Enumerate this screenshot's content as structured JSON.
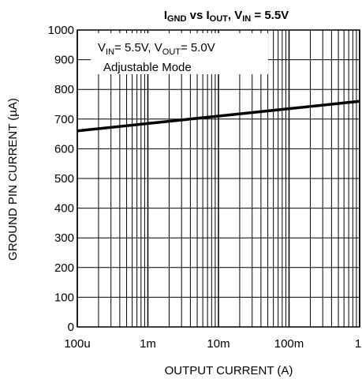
{
  "chart_data": {
    "type": "line",
    "title": {
      "i": "I",
      "gnd": "GND",
      "vs": " vs I",
      "out": "OUT",
      "comma": ", V",
      "in": "IN",
      "tail": " = 5.5V"
    },
    "xlabel": "OUTPUT CURRENT (A)",
    "ylabel": "GROUND PIN CURRENT (µA)",
    "x_scale": "log",
    "xlim": [
      0.0001,
      1
    ],
    "ylim": [
      0,
      1000
    ],
    "grid": true,
    "x_ticks": [
      {
        "value": 0.0001,
        "label": "100u"
      },
      {
        "value": 0.001,
        "label": "1m"
      },
      {
        "value": 0.01,
        "label": "10m"
      },
      {
        "value": 0.1,
        "label": "100m"
      },
      {
        "value": 1,
        "label": "1"
      }
    ],
    "y_ticks": [
      {
        "value": 0,
        "label": "0"
      },
      {
        "value": 100,
        "label": "100"
      },
      {
        "value": 200,
        "label": "200"
      },
      {
        "value": 300,
        "label": "300"
      },
      {
        "value": 400,
        "label": "400"
      },
      {
        "value": 500,
        "label": "500"
      },
      {
        "value": 600,
        "label": "600"
      },
      {
        "value": 700,
        "label": "700"
      },
      {
        "value": 800,
        "label": "800"
      },
      {
        "value": 900,
        "label": "900"
      },
      {
        "value": 1000,
        "label": "1000"
      }
    ],
    "annotation": {
      "v1": "V",
      "v1_sub": "IN",
      "mid": "= 5.5V, V",
      "v2_sub": "OUT",
      "end": "= 5.0V",
      "line2": "Adjustable Mode"
    },
    "series": [
      {
        "x": [
          0.0001,
          0.001,
          0.01,
          0.1,
          1
        ],
        "y": [
          660,
          685,
          710,
          735,
          760
        ]
      }
    ],
    "colors": {
      "line": "#000000",
      "grid": "#000000",
      "background": "#ffffff"
    }
  }
}
